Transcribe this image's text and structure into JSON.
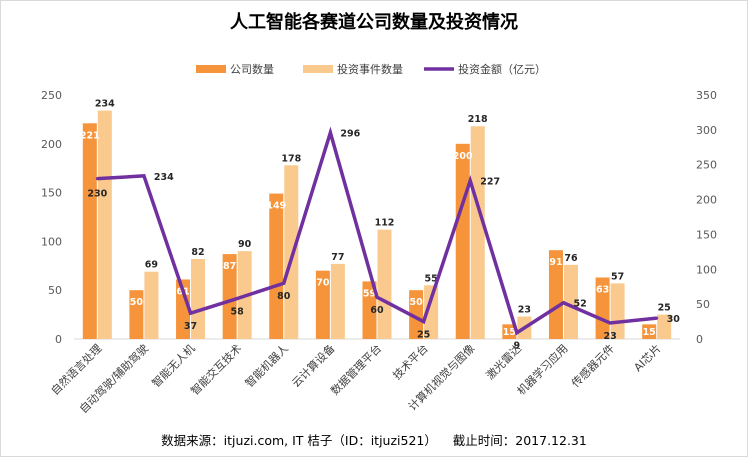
{
  "chart_data": {
    "type": "bar",
    "title": "人工智能各赛道公司数量及投资情况",
    "categories": [
      "自然语言处理",
      "自动驾驶/辅助驾驶",
      "智能无人机",
      "智能交互技术",
      "智能机器人",
      "云计算设备",
      "数据管理平台",
      "技术平台",
      "计算机视觉与图像",
      "激光雷达",
      "机器学习应用",
      "传感器元件",
      "AI芯片"
    ],
    "series": [
      {
        "name": "公司数量",
        "kind": "bar",
        "axis": "left",
        "color": "#f5943a",
        "label_color": "#ffffff",
        "values": [
          221,
          50,
          61,
          87,
          149,
          70,
          59,
          50,
          200,
          15,
          91,
          63,
          15
        ]
      },
      {
        "name": "投资事件数量",
        "kind": "bar",
        "axis": "left",
        "color": "#f9c98e",
        "label_color": "#262626",
        "values": [
          234,
          69,
          82,
          90,
          178,
          77,
          112,
          55,
          218,
          23,
          76,
          57,
          25
        ]
      },
      {
        "name": "投资金额（亿元）",
        "kind": "line",
        "axis": "right",
        "color": "#7030a0",
        "label_color": "#262626",
        "values": [
          230,
          234,
          37,
          58,
          80,
          296,
          60,
          25,
          227,
          9,
          52,
          23,
          30
        ]
      }
    ],
    "left_axis": {
      "min": 0,
      "max": 250,
      "ticks": [
        0,
        50,
        100,
        150,
        200,
        250
      ]
    },
    "right_axis": {
      "min": 0,
      "max": 350,
      "ticks": [
        0,
        50,
        100,
        150,
        200,
        250,
        300,
        350
      ]
    },
    "legend_position": "top-center",
    "grid": false
  },
  "footer": {
    "source_text": "数据来源：itjuzi.com, IT 桔子（ID：itjuzi521）    截止时间：2017.12.31"
  }
}
